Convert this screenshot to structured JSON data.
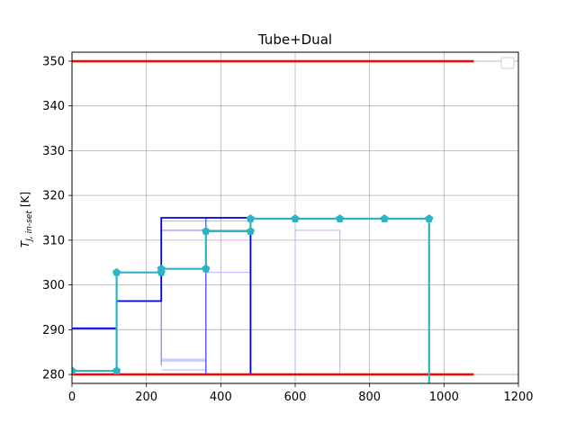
{
  "chart_data": {
    "type": "line",
    "title": "Tube+Dual",
    "ylabel_main": "T",
    "ylabel_sub": "J, in-set",
    "ylabel_unit": "[K]",
    "xlim": [
      0,
      1200
    ],
    "ylim": [
      278,
      352
    ],
    "xticks": [
      0,
      200,
      400,
      600,
      800,
      1000,
      1200
    ],
    "yticks": [
      280,
      290,
      300,
      310,
      320,
      330,
      340,
      350
    ],
    "grid": true,
    "legend": "top-right, empty",
    "series": [
      {
        "color": "#ccccff",
        "width": 3.5,
        "x": [
          240,
          360
        ],
        "y": [
          283.2,
          283.2
        ]
      },
      {
        "color": "#ccccff",
        "width": 1.5,
        "x": [
          240,
          240,
          360,
          360
        ],
        "y": [
          281,
          281,
          281,
          280
        ]
      },
      {
        "color": "#bbbbff",
        "width": 1.2,
        "x": [
          240,
          240,
          480,
          480
        ],
        "y": [
          283,
          314.3,
          314.3,
          280
        ]
      },
      {
        "color": "#bbbbff",
        "width": 1.2,
        "x": [
          360,
          360,
          480
        ],
        "y": [
          280,
          302.8,
          302.8
        ]
      },
      {
        "color": "#bbbbff",
        "width": 1.2,
        "x": [
          600,
          600,
          720,
          720
        ],
        "y": [
          280,
          312.2,
          312.2,
          280
        ]
      },
      {
        "color": "#8888ff",
        "width": 1.2,
        "x": [
          240,
          240,
          480
        ],
        "y": [
          282,
          312.2,
          312.2
        ]
      },
      {
        "color": "#4444ee",
        "width": 1.2,
        "x": [
          360,
          360,
          480
        ],
        "y": [
          280,
          315,
          315
        ]
      },
      {
        "color": "#0000dd",
        "width": 1.8,
        "x": [
          0,
          120,
          120,
          240,
          240,
          480,
          480
        ],
        "y": [
          290.3,
          290.3,
          296.4,
          296.4,
          315,
          315,
          280
        ]
      },
      {
        "color": "#ff0000",
        "width": 2.5,
        "x": [
          0,
          1080
        ],
        "y": [
          350,
          350
        ]
      },
      {
        "color": "#ff0000",
        "width": 2.5,
        "x": [
          0,
          1080
        ],
        "y": [
          280,
          280
        ]
      },
      {
        "color": "#2cb4c4",
        "width": 2.2,
        "marker": "pentagon",
        "x": [
          0,
          120,
          120,
          240,
          240,
          360,
          360,
          480,
          480,
          600,
          720,
          840,
          960,
          960
        ],
        "y": [
          280.8,
          280.8,
          302.8,
          302.8,
          303.6,
          303.6,
          312,
          312,
          314.8,
          314.8,
          314.8,
          314.8,
          314.8,
          278
        ]
      }
    ]
  }
}
